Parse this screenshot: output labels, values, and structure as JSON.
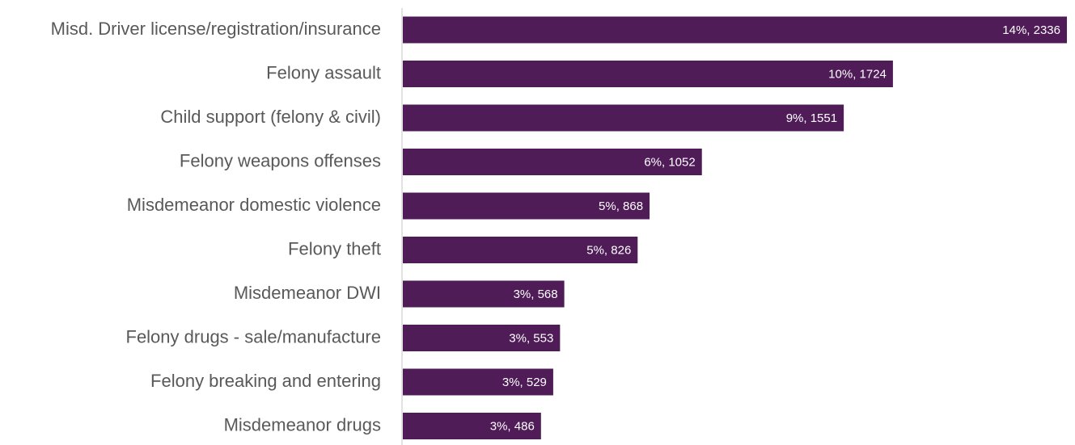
{
  "chart_data": {
    "type": "bar",
    "orientation": "horizontal",
    "categories": [
      "Misd. Driver license/registration/insurance",
      "Felony assault",
      "Child support (felony & civil)",
      "Felony weapons offenses",
      "Misdemeanor domestic violence",
      "Felony theft",
      "Misdemeanor DWI",
      "Felony drugs - sale/manufacture",
      "Felony breaking and entering",
      "Misdemeanor drugs"
    ],
    "values": [
      2336,
      1724,
      1551,
      1052,
      868,
      826,
      568,
      553,
      529,
      486
    ],
    "percents": [
      "14%",
      "10%",
      "9%",
      "6%",
      "5%",
      "5%",
      "3%",
      "3%",
      "3%",
      "3%"
    ],
    "data_labels": [
      "14%, 2336",
      "10%, 1724",
      "9%, 1551",
      "6%, 1052",
      "5%, 868",
      "5%, 826",
      "3%, 568",
      "3%, 553",
      "3%, 529",
      "3%, 486"
    ],
    "title": "",
    "xlabel": "",
    "ylabel": "",
    "xlim": [
      0,
      2336
    ],
    "grid": false,
    "legend": "none",
    "bar_color": "#4f1c58",
    "axis_color": "#d9d9d9",
    "label_color": "#595959",
    "data_label_color": "#ffffff"
  }
}
